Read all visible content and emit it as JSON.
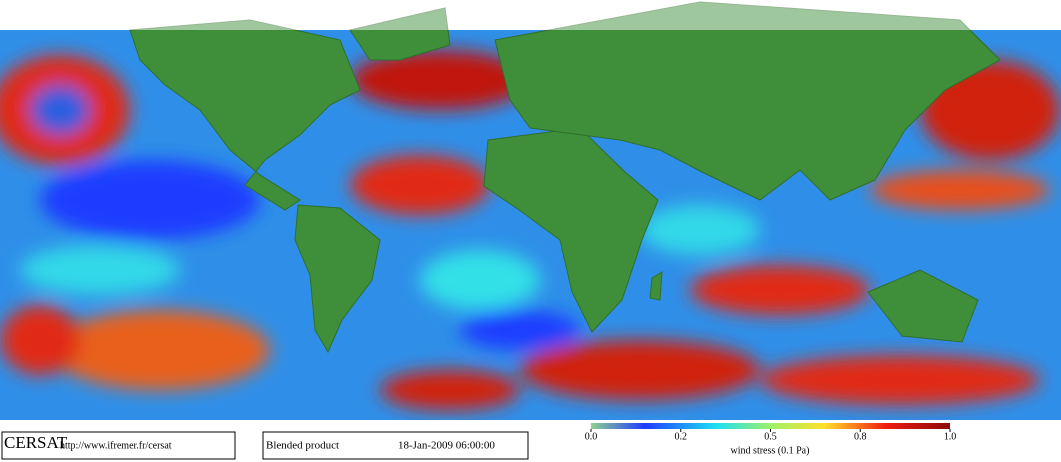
{
  "footer": {
    "logo": "CERSAT",
    "url": "http://www.ifremer.fr/cersat",
    "product": "Blended product",
    "datetime": "18-Jan-2009 06:00:00"
  },
  "colorbar": {
    "ticks": [
      {
        "value": 0,
        "label": "0.0"
      },
      0.2,
      0.5,
      0.8,
      {
        "value": 1,
        "label": "1.0"
      }
    ],
    "label": "wind stress (0.1 Pa)"
  }
}
